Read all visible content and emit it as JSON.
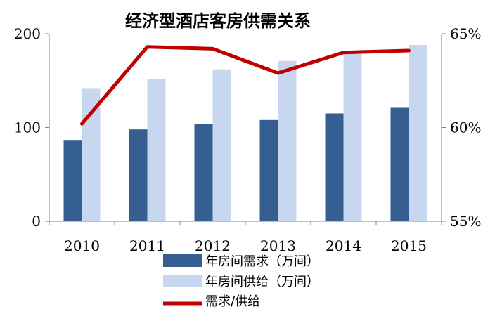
{
  "chart_data": {
    "type": "bar",
    "title": "经济型酒店客房供需关系",
    "categories": [
      "2010",
      "2011",
      "2012",
      "2013",
      "2014",
      "2015"
    ],
    "series": [
      {
        "name": "年房间需求（万间）",
        "kind": "bar",
        "axis": "left",
        "color": "#365f91",
        "values": [
          86,
          98,
          104,
          108,
          115,
          121
        ]
      },
      {
        "name": "年房间供给（万间）",
        "kind": "bar",
        "axis": "left",
        "color": "#c6d7ef",
        "values": [
          142,
          152,
          162,
          171,
          181,
          188
        ]
      },
      {
        "name": "需求/供给",
        "kind": "line",
        "axis": "right",
        "color": "#c00000",
        "values": [
          60.2,
          64.3,
          64.2,
          62.9,
          64.0,
          64.1
        ]
      }
    ],
    "left_axis": {
      "ylim": [
        0,
        200
      ],
      "ticks": [
        0,
        100,
        200
      ],
      "tick_labels": [
        "0",
        "100",
        "200"
      ]
    },
    "right_axis": {
      "ylim": [
        55,
        65
      ],
      "ticks": [
        55,
        60,
        65
      ],
      "tick_labels": [
        "55%",
        "60%",
        "65%"
      ]
    },
    "legend_position": "bottom",
    "grid": false
  }
}
